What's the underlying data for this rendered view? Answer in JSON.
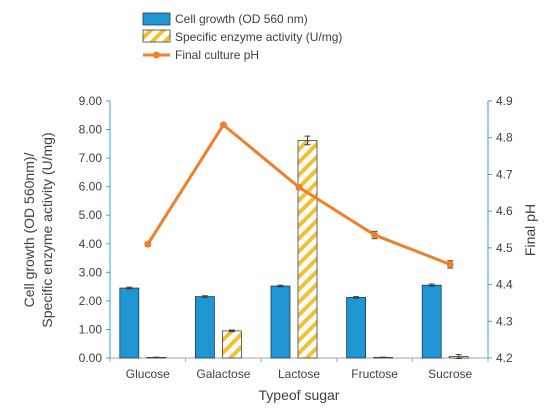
{
  "chart_data": {
    "type": "bar",
    "categories": [
      "Glucose",
      "Galactose",
      "Lactose",
      "Fructose",
      "Sucrose"
    ],
    "series": [
      {
        "name": "Cell growth (OD 560 nm)",
        "kind": "bar",
        "axis": "left",
        "color": "#1f96d2",
        "pattern": "solid",
        "values": [
          2.45,
          2.15,
          2.52,
          2.12,
          2.55
        ],
        "errors": [
          0.03,
          0.03,
          0.03,
          0.03,
          0.04
        ]
      },
      {
        "name": "Specific enzyme activity (U/mg)",
        "kind": "bar",
        "axis": "left",
        "color": "#f2c132",
        "pattern": "diagonal-hatch",
        "values": [
          0.02,
          0.95,
          7.62,
          0.02,
          0.05
        ],
        "errors": [
          0.01,
          0.03,
          0.15,
          0.01,
          0.07
        ]
      },
      {
        "name": "Final culture pH",
        "kind": "line",
        "axis": "right",
        "color": "#f07f2a",
        "values": [
          4.51,
          4.835,
          4.665,
          4.535,
          4.455
        ],
        "errors": [
          0.005,
          0.003,
          0.005,
          0.01,
          0.01
        ]
      }
    ],
    "xlabel": "Typeof sugar",
    "ylabel_left": [
      "Cell growth (OD 560nm)/",
      "Specific enzyme activity (U/mg)"
    ],
    "ylabel_right": "Final pH",
    "ylim_left": [
      0,
      9
    ],
    "ylim_right": [
      4.2,
      4.9
    ],
    "yticks_left": [
      "0.00",
      "1.00",
      "2.00",
      "3.00",
      "4.00",
      "5.00",
      "6.00",
      "7.00",
      "8.00",
      "9.00"
    ],
    "yticks_right": [
      "4.2",
      "4.3",
      "4.4",
      "4.5",
      "4.6",
      "4.7",
      "4.8",
      "4.9"
    ],
    "grid": false,
    "legend_position": "top"
  }
}
